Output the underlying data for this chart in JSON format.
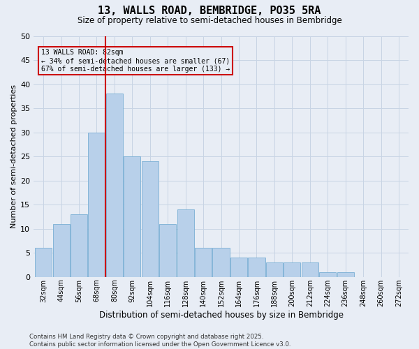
{
  "title": "13, WALLS ROAD, BEMBRIDGE, PO35 5RA",
  "subtitle": "Size of property relative to semi-detached houses in Bembridge",
  "xlabel": "Distribution of semi-detached houses by size in Bembridge",
  "ylabel": "Number of semi-detached properties",
  "footer_line1": "Contains HM Land Registry data © Crown copyright and database right 2025.",
  "footer_line2": "Contains public sector information licensed under the Open Government Licence v3.0.",
  "bin_labels": [
    "32sqm",
    "44sqm",
    "56sqm",
    "68sqm",
    "80sqm",
    "92sqm",
    "104sqm",
    "116sqm",
    "128sqm",
    "140sqm",
    "152sqm",
    "164sqm",
    "176sqm",
    "188sqm",
    "200sqm",
    "212sqm",
    "224sqm",
    "236sqm",
    "248sqm",
    "260sqm",
    "272sqm"
  ],
  "bar_values": [
    6,
    11,
    13,
    30,
    38,
    25,
    24,
    11,
    14,
    6,
    6,
    4,
    4,
    3,
    3,
    3,
    1,
    1,
    0,
    0,
    0
  ],
  "bar_color": "#b8d0ea",
  "bar_edgecolor": "#7aafd4",
  "grid_color": "#c8d4e4",
  "background_color": "#e8edf5",
  "vline_color": "#cc0000",
  "annotation_title": "13 WALLS ROAD: 82sqm",
  "annotation_line1": "← 34% of semi-detached houses are smaller (67)",
  "annotation_line2": "67% of semi-detached houses are larger (133) →",
  "annotation_box_color": "#cc0000",
  "ylim": [
    0,
    50
  ],
  "yticks": [
    0,
    5,
    10,
    15,
    20,
    25,
    30,
    35,
    40,
    45,
    50
  ],
  "bin_width": 12,
  "vline_position": 4.5
}
